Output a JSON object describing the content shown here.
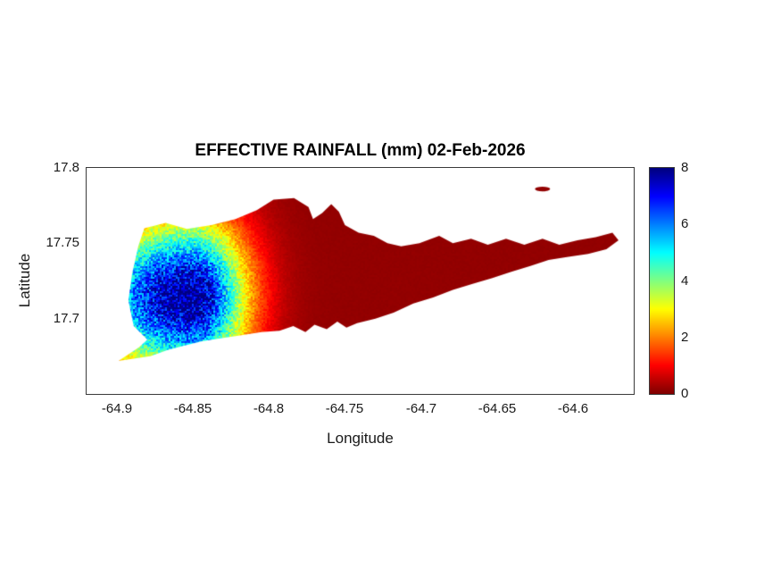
{
  "chart_data": {
    "type": "heatmap",
    "title": "EFFECTIVE RAINFALL (mm) 02-Feb-2026",
    "xlabel": "Longitude",
    "ylabel": "Latitude",
    "xlim": [
      -64.92,
      -64.56
    ],
    "ylim": [
      17.65,
      17.8
    ],
    "xticks": [
      -64.9,
      -64.85,
      -64.8,
      -64.75,
      -64.7,
      -64.65,
      -64.6
    ],
    "xtick_labels": [
      "-64.9",
      "-64.85",
      "-64.8",
      "-64.75",
      "-64.7",
      "-64.65",
      "-64.6"
    ],
    "yticks": [
      17.7,
      17.75,
      17.8
    ],
    "ytick_labels": [
      "17.7",
      "17.75",
      "17.8"
    ],
    "grid": false,
    "legend": "none",
    "colorbar": {
      "min": 0,
      "max": 8,
      "ticks": [
        8,
        6,
        4,
        2,
        0
      ],
      "tick_labels": [
        "8",
        "6",
        "4",
        "2",
        "0"
      ],
      "colormap": "jet-reversed (0 = dark red, 8 = dark blue)",
      "position": "right"
    },
    "shape_note": "Island landmass heatmap (St. Croix-shaped outline) with small islet to the northeast; rainfall peak over the west end fading to ~0 mm in the east",
    "field": {
      "peak_value_mm": 8,
      "peak_center": [
        -64.851,
        17.714
      ],
      "sigma_east_deg": 0.035,
      "sigma_west_deg": 0.07,
      "sigma_lat_deg": 0.05,
      "background_value_mm": 0.15,
      "noise_amplitude": 0.18
    },
    "island_outline": [
      [
        -64.899,
        17.672
      ],
      [
        -64.8855,
        17.681
      ],
      [
        -64.88,
        17.686
      ],
      [
        -64.889,
        17.695
      ],
      [
        -64.8925,
        17.712
      ],
      [
        -64.89,
        17.73
      ],
      [
        -64.886,
        17.748
      ],
      [
        -64.882,
        17.76
      ],
      [
        -64.868,
        17.7635
      ],
      [
        -64.854,
        17.7595
      ],
      [
        -64.838,
        17.762
      ],
      [
        -64.822,
        17.766
      ],
      [
        -64.808,
        17.772
      ],
      [
        -64.797,
        17.779
      ],
      [
        -64.7835,
        17.78
      ],
      [
        -64.774,
        17.774
      ],
      [
        -64.771,
        17.766
      ],
      [
        -64.765,
        17.77
      ],
      [
        -64.759,
        17.776
      ],
      [
        -64.754,
        17.771
      ],
      [
        -64.75,
        17.762
      ],
      [
        -64.741,
        17.757
      ],
      [
        -64.731,
        17.755
      ],
      [
        -64.722,
        17.75
      ],
      [
        -64.713,
        17.748
      ],
      [
        -64.701,
        17.75
      ],
      [
        -64.688,
        17.755
      ],
      [
        -64.679,
        17.75
      ],
      [
        -64.667,
        17.753
      ],
      [
        -64.656,
        17.749
      ],
      [
        -64.644,
        17.753
      ],
      [
        -64.632,
        17.749
      ],
      [
        -64.62,
        17.753
      ],
      [
        -64.609,
        17.749
      ],
      [
        -64.597,
        17.752
      ],
      [
        -64.585,
        17.754
      ],
      [
        -64.574,
        17.757
      ],
      [
        -64.57,
        17.752
      ],
      [
        -64.578,
        17.746
      ],
      [
        -64.59,
        17.743
      ],
      [
        -64.603,
        17.741
      ],
      [
        -64.616,
        17.739
      ],
      [
        -64.628,
        17.735
      ],
      [
        -64.641,
        17.731
      ],
      [
        -64.653,
        17.727
      ],
      [
        -64.666,
        17.723
      ],
      [
        -64.679,
        17.719
      ],
      [
        -64.692,
        17.714
      ],
      [
        -64.705,
        17.71
      ],
      [
        -64.718,
        17.704
      ],
      [
        -64.73,
        17.7
      ],
      [
        -64.742,
        17.697
      ],
      [
        -64.749,
        17.694
      ],
      [
        -64.755,
        17.698
      ],
      [
        -64.762,
        17.693
      ],
      [
        -64.77,
        17.696
      ],
      [
        -64.776,
        17.691
      ],
      [
        -64.784,
        17.695
      ],
      [
        -64.793,
        17.692
      ],
      [
        -64.805,
        17.691
      ],
      [
        -64.818,
        17.689
      ],
      [
        -64.831,
        17.687
      ],
      [
        -64.844,
        17.685
      ],
      [
        -64.856,
        17.682
      ],
      [
        -64.867,
        17.679
      ],
      [
        -64.878,
        17.675
      ]
    ],
    "islets": [
      {
        "center": [
          -64.62,
          17.786
        ],
        "rx": 0.005,
        "ry": 0.0016
      }
    ]
  }
}
